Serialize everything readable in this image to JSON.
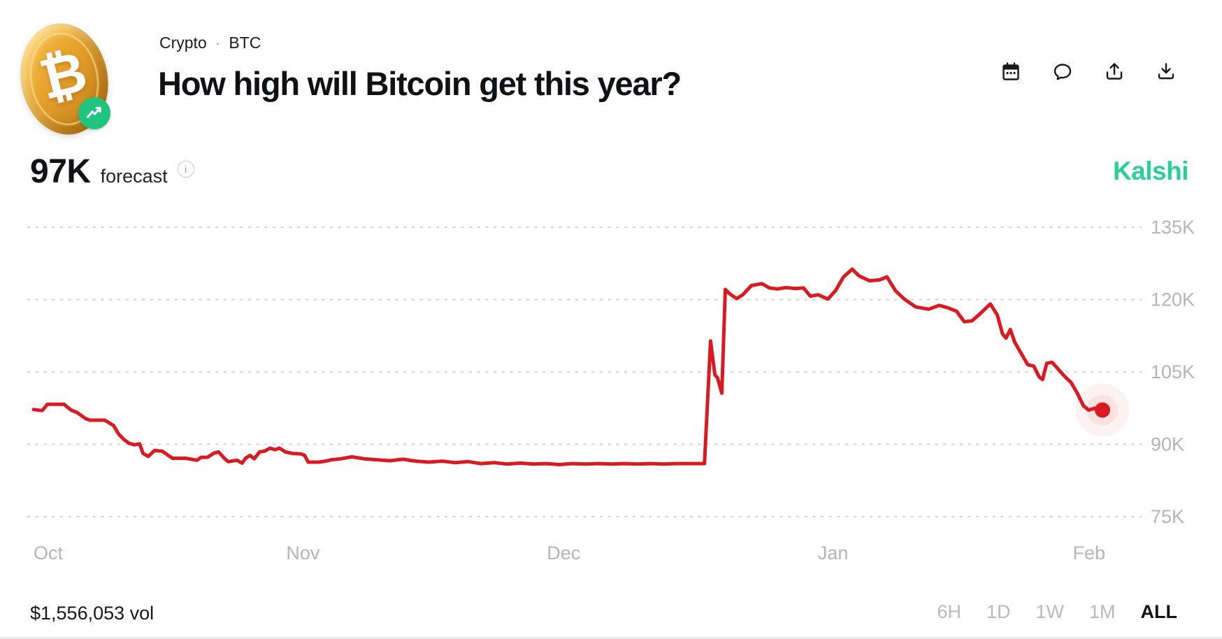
{
  "header": {
    "breadcrumb": {
      "category": "Crypto",
      "separator": "·",
      "ticker": "BTC"
    },
    "title": "How high will Bitcoin get this year?",
    "coin_symbol": "₿",
    "actions": [
      {
        "name": "calendar",
        "label": "Calendar"
      },
      {
        "name": "comment",
        "label": "Comments"
      },
      {
        "name": "share",
        "label": "Share"
      },
      {
        "name": "download",
        "label": "Download"
      }
    ]
  },
  "forecast": {
    "value": "97K",
    "label": "forecast",
    "info_glyph": "i"
  },
  "branding": {
    "logo_text": "Kalshi",
    "logo_color": "#2bce94"
  },
  "footer": {
    "volume": "$1,556,053 vol",
    "ranges": [
      {
        "label": "6H",
        "active": false
      },
      {
        "label": "1D",
        "active": false
      },
      {
        "label": "1W",
        "active": false
      },
      {
        "label": "1M",
        "active": false
      },
      {
        "label": "ALL",
        "active": true
      }
    ]
  },
  "chart_data": {
    "type": "line",
    "title": "How high will Bitcoin get this year?",
    "series_name": "Forecast",
    "x_unit": "days since Oct 1",
    "y_unit": "K (thousand USD)",
    "ylim": [
      75,
      135
    ],
    "grid": "dotted horizontal lines, labels on right",
    "legend": "none",
    "line_color": "#d91a21",
    "grid_color": "#d8d9db",
    "tick_label_color": "#b3b5b8",
    "y_ticks": [
      {
        "value": 135,
        "label": "135K"
      },
      {
        "value": 120,
        "label": "120K"
      },
      {
        "value": 105,
        "label": "105K"
      },
      {
        "value": 90,
        "label": "90K"
      },
      {
        "value": 75,
        "label": "75K"
      }
    ],
    "x_ticks": [
      {
        "day": 0,
        "label": "Oct"
      },
      {
        "day": 31,
        "label": "Nov"
      },
      {
        "day": 61,
        "label": "Dec"
      },
      {
        "day": 92,
        "label": "Jan"
      },
      {
        "day": 123,
        "label": "Feb"
      }
    ],
    "last_point": {
      "day": 123,
      "value": 97.1,
      "label": "97K"
    },
    "points": [
      [
        0,
        97.2
      ],
      [
        1,
        97
      ],
      [
        1.6,
        98.3
      ],
      [
        3.5,
        98.3
      ],
      [
        4.3,
        97.1
      ],
      [
        5,
        96.6
      ],
      [
        6,
        95.3
      ],
      [
        6.5,
        95
      ],
      [
        8.2,
        95
      ],
      [
        9.2,
        93.9
      ],
      [
        9.8,
        92.1
      ],
      [
        10.4,
        91
      ],
      [
        11,
        90.2
      ],
      [
        11.6,
        89.9
      ],
      [
        12.2,
        90.1
      ],
      [
        12.6,
        88.1
      ],
      [
        13.2,
        87.5
      ],
      [
        13.9,
        88.7
      ],
      [
        14.8,
        88.6
      ],
      [
        15.5,
        87.7
      ],
      [
        16,
        87.1
      ],
      [
        17.5,
        87.1
      ],
      [
        18.8,
        86.7
      ],
      [
        19.3,
        87.3
      ],
      [
        20,
        87.3
      ],
      [
        20.8,
        88.2
      ],
      [
        21.3,
        88.4
      ],
      [
        22,
        87
      ],
      [
        22.4,
        86.4
      ],
      [
        23.4,
        86.7
      ],
      [
        24,
        86.1
      ],
      [
        24.4,
        87.1
      ],
      [
        24.9,
        87.7
      ],
      [
        25.4,
        87
      ],
      [
        26,
        88.4
      ],
      [
        26.6,
        88.6
      ],
      [
        27.2,
        89.2
      ],
      [
        27.8,
        88.9
      ],
      [
        28.3,
        89.2
      ],
      [
        29,
        88.4
      ],
      [
        29.8,
        88.1
      ],
      [
        30.8,
        88
      ],
      [
        31.2,
        87.7
      ],
      [
        31.6,
        86.3
      ],
      [
        32.8,
        86.3
      ],
      [
        33.6,
        86.5
      ],
      [
        34.3,
        86.8
      ],
      [
        35.4,
        87
      ],
      [
        36.6,
        87.4
      ],
      [
        38,
        87
      ],
      [
        39.5,
        86.8
      ],
      [
        41,
        86.6
      ],
      [
        42.5,
        86.9
      ],
      [
        44,
        86.5
      ],
      [
        45.5,
        86.3
      ],
      [
        47,
        86.5
      ],
      [
        48.5,
        86.2
      ],
      [
        50,
        86.4
      ],
      [
        51.5,
        86
      ],
      [
        53,
        86.2
      ],
      [
        54.5,
        85.9
      ],
      [
        56,
        86.1
      ],
      [
        57.5,
        85.9
      ],
      [
        59,
        86
      ],
      [
        60.5,
        85.8
      ],
      [
        62,
        86
      ],
      [
        63.5,
        85.9
      ],
      [
        65,
        86
      ],
      [
        66.5,
        85.9
      ],
      [
        68,
        86
      ],
      [
        69.5,
        85.9
      ],
      [
        71,
        86
      ],
      [
        72.5,
        85.9
      ],
      [
        74,
        86
      ],
      [
        75.5,
        86
      ],
      [
        77.2,
        86
      ],
      [
        77.9,
        111.4
      ],
      [
        78.4,
        104.4
      ],
      [
        78.7,
        103.8
      ],
      [
        79.2,
        100.6
      ],
      [
        79.6,
        122.1
      ],
      [
        80.1,
        121.2
      ],
      [
        80.9,
        120.2
      ],
      [
        81.6,
        121
      ],
      [
        82.6,
        122.9
      ],
      [
        83.8,
        123.3
      ],
      [
        84.7,
        122.4
      ],
      [
        85.6,
        122.2
      ],
      [
        86.6,
        122.5
      ],
      [
        87.6,
        122.3
      ],
      [
        88.6,
        122.4
      ],
      [
        89.4,
        120.7
      ],
      [
        90.3,
        121
      ],
      [
        91.4,
        120.1
      ],
      [
        92.3,
        121.9
      ],
      [
        93.2,
        124.7
      ],
      [
        94.2,
        126.3
      ],
      [
        95,
        124.9
      ],
      [
        96.2,
        123.9
      ],
      [
        97.4,
        124.1
      ],
      [
        98.2,
        124.7
      ],
      [
        99.2,
        121.8
      ],
      [
        100.2,
        120.1
      ],
      [
        101.5,
        118.5
      ],
      [
        103,
        118
      ],
      [
        104.2,
        118.8
      ],
      [
        105.2,
        118.3
      ],
      [
        106.2,
        117.6
      ],
      [
        107.1,
        115.4
      ],
      [
        108,
        115.6
      ],
      [
        109,
        117.2
      ],
      [
        110.1,
        119.1
      ],
      [
        110.9,
        116.8
      ],
      [
        111.5,
        112.9
      ],
      [
        111.9,
        112
      ],
      [
        112.4,
        113.8
      ],
      [
        112.9,
        111.2
      ],
      [
        113.6,
        109
      ],
      [
        114.4,
        106.5
      ],
      [
        115.1,
        106.2
      ],
      [
        115.7,
        104
      ],
      [
        116.1,
        103.4
      ],
      [
        116.6,
        106.8
      ],
      [
        117.2,
        107
      ],
      [
        117.9,
        105.6
      ],
      [
        118.7,
        104
      ],
      [
        119.4,
        102.8
      ],
      [
        120.1,
        100.6
      ],
      [
        120.8,
        98
      ],
      [
        121.4,
        97.1
      ],
      [
        122.2,
        97.5
      ],
      [
        122.6,
        97.1
      ],
      [
        123,
        97.1
      ]
    ]
  }
}
